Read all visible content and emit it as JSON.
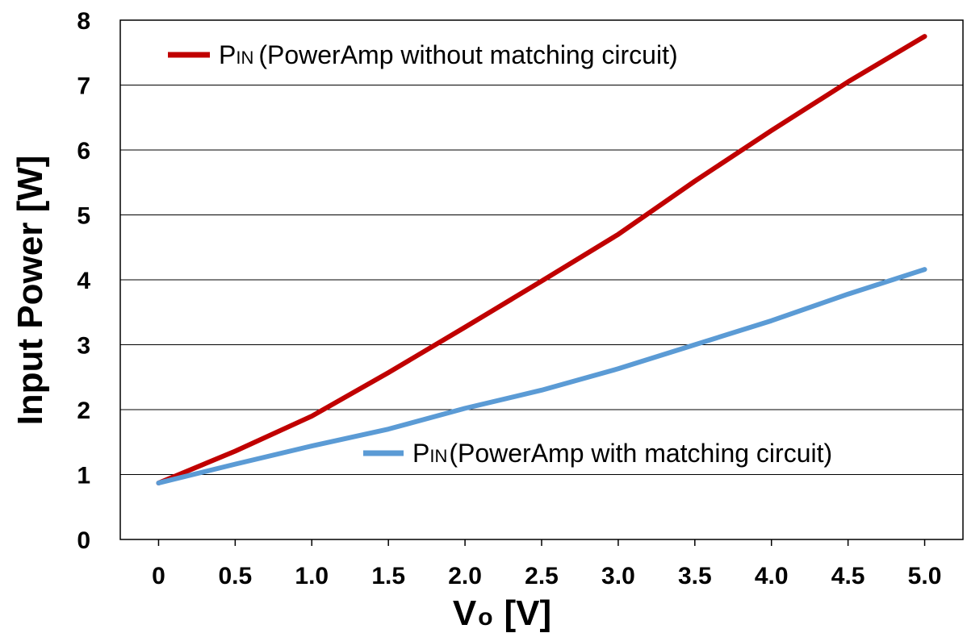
{
  "chart_data": {
    "type": "line",
    "title": "",
    "xlabel": "V",
    "xlabel_sub": "o",
    "xlabel_unit": "[V]",
    "ylabel": "Input Power [W]",
    "x": [
      0,
      0.5,
      1.0,
      1.5,
      2.0,
      2.5,
      3.0,
      3.5,
      4.0,
      4.5,
      5.0
    ],
    "x_tick_labels": [
      "0",
      "0.5",
      "1.0",
      "1.5",
      "2.0",
      "2.5",
      "3.0",
      "3.5",
      "4.0",
      "4.5",
      "5.0"
    ],
    "y_ticks": [
      0,
      1,
      2,
      3,
      4,
      5,
      6,
      7,
      8
    ],
    "y_tick_labels": [
      "0",
      "1",
      "2",
      "3",
      "4",
      "5",
      "6",
      "7",
      "8"
    ],
    "xlim": [
      -0.25,
      5.25
    ],
    "ylim": [
      0,
      8
    ],
    "grid": "horizontal",
    "series": [
      {
        "name_main": "P",
        "name_sub": "IN",
        "name_rest": "(PowerAmp without matching circuit)",
        "color": "#c00000",
        "values": [
          0.87,
          1.36,
          1.9,
          2.57,
          3.27,
          3.98,
          4.7,
          5.52,
          6.3,
          7.05,
          7.75
        ]
      },
      {
        "name_main": "P",
        "name_sub": "IN",
        "name_rest": "(PowerAmp with matching circuit)",
        "color": "#5b9bd5",
        "values": [
          0.87,
          1.16,
          1.44,
          1.7,
          2.02,
          2.3,
          2.63,
          3.0,
          3.37,
          3.78,
          4.16
        ]
      }
    ]
  }
}
